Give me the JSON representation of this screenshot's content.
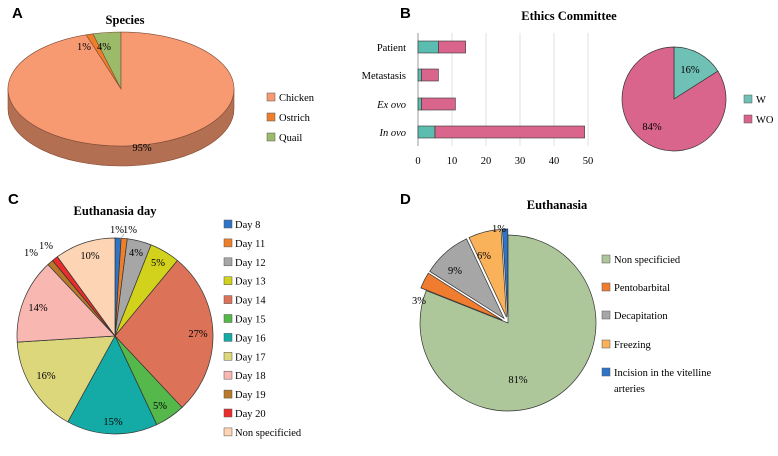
{
  "panel_labels": {
    "A": "A",
    "B": "B",
    "C": "C",
    "D": "D"
  },
  "chart_data": [
    {
      "panel": "A",
      "type": "pie",
      "title": "Species",
      "categories": [
        "Chicken",
        "Ostrich",
        "Quail"
      ],
      "values": [
        95,
        1,
        4
      ],
      "labels": [
        "95%",
        "1%",
        "4%"
      ],
      "colors": [
        "#f79a72",
        "#ee7e2a",
        "#9bbb6a"
      ],
      "style": "3d",
      "legend_position": "right"
    },
    {
      "panel": "B",
      "type": "bar",
      "orientation": "horizontal",
      "stacked": true,
      "title": "Ethics Committee",
      "categories": [
        "Patient",
        "Metastasis",
        "Ex ovo",
        "In ovo"
      ],
      "series": [
        {
          "name": "W",
          "values": [
            6,
            1,
            1,
            5
          ],
          "color": "#5bbcb0"
        },
        {
          "name": "WO",
          "values": [
            8,
            5,
            10,
            44
          ],
          "color": "#d9658c"
        }
      ],
      "xticks": [
        "0",
        "10",
        "20",
        "30",
        "40",
        "50"
      ],
      "xlim": [
        0,
        50
      ],
      "grid": true
    },
    {
      "panel": "B",
      "type": "pie",
      "categories": [
        "W",
        "WO"
      ],
      "values": [
        16,
        84
      ],
      "labels": [
        "16%",
        "84%"
      ],
      "colors": [
        "#6fc1b6",
        "#d9658c"
      ],
      "legend_position": "right"
    },
    {
      "panel": "C",
      "type": "pie",
      "title": "Euthanasia day",
      "categories": [
        "Day 8",
        "Day 11",
        "Day 12",
        "Day 13",
        "Day 14",
        "Day 15",
        "Day 16",
        "Day 17",
        "Day 18",
        "Day 19",
        "Day 20",
        "Non specificied"
      ],
      "values": [
        1,
        1,
        4,
        5,
        27,
        5,
        15,
        16,
        14,
        1,
        1,
        10
      ],
      "labels": [
        "1%",
        "1%",
        "4%",
        "5%",
        "27%",
        "5%",
        "15%",
        "16%",
        "14%",
        "1%",
        "1%",
        "10%"
      ],
      "colors": [
        "#2e75c8",
        "#ee7e2a",
        "#a6a6a6",
        "#d2d21c",
        "#dc7358",
        "#55b84a",
        "#14aaa6",
        "#ddd77c",
        "#f8b7b0",
        "#b8782a",
        "#ea2c2c",
        "#fdd5b4"
      ],
      "legend_position": "right"
    },
    {
      "panel": "D",
      "type": "pie",
      "title": "Euthanasia",
      "categories": [
        "Non specificied",
        "Pentobarbital",
        "Decapitation",
        "Freezing",
        "Incision in the vitelline arteries"
      ],
      "values": [
        81,
        3,
        9,
        6,
        1
      ],
      "labels": [
        "81%",
        "3%",
        "9%",
        "6%",
        "1%"
      ],
      "colors": [
        "#adc79a",
        "#f07c30",
        "#a6a6a6",
        "#f9b15a",
        "#2e75c8"
      ],
      "exploded": true,
      "legend_position": "right"
    }
  ]
}
